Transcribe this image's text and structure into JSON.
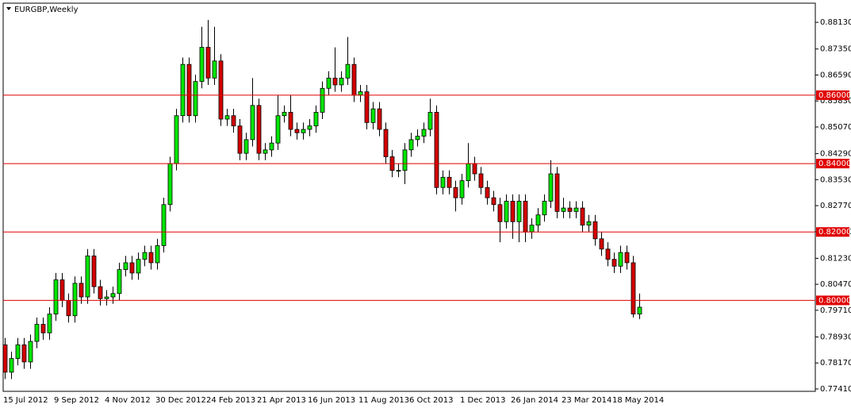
{
  "chart_data": {
    "type": "candlestick",
    "title": "EURGBP,Weekly",
    "categories": [
      "15 Jul 2012",
      null,
      null,
      null,
      null,
      null,
      null,
      null,
      "9 Sep 2012",
      null,
      null,
      null,
      null,
      null,
      null,
      null,
      "4 Nov 2012",
      null,
      null,
      null,
      null,
      null,
      null,
      null,
      "30 Dec 2012",
      null,
      null,
      null,
      null,
      null,
      null,
      null,
      "24 Feb 2013",
      null,
      null,
      null,
      null,
      null,
      null,
      null,
      "21 Apr 2013",
      null,
      null,
      null,
      null,
      null,
      null,
      null,
      "16 Jun 2013",
      null,
      null,
      null,
      null,
      null,
      null,
      null,
      "11 Aug 2013",
      null,
      null,
      null,
      null,
      null,
      null,
      null,
      "6 Oct 2013",
      null,
      null,
      null,
      null,
      null,
      null,
      null,
      "1 Dec 2013",
      null,
      null,
      null,
      null,
      null,
      null,
      null,
      "26 Jan 2014",
      null,
      null,
      null,
      null,
      null,
      null,
      null,
      "23 Mar 2014",
      null,
      null,
      null,
      null,
      null,
      null,
      null,
      "18 May 2014",
      null,
      null,
      null,
      null
    ],
    "open": [
      0.787,
      0.779,
      0.783,
      0.787,
      0.782,
      0.788,
      0.793,
      0.7905,
      0.796,
      0.806,
      0.8,
      0.7955,
      0.805,
      0.801,
      0.813,
      0.804,
      0.8005,
      0.801,
      0.802,
      0.809,
      0.811,
      0.808,
      0.812,
      0.814,
      0.811,
      0.816,
      0.828,
      0.84,
      0.854,
      0.869,
      0.854,
      0.864,
      0.874,
      0.865,
      0.87,
      0.853,
      0.854,
      0.851,
      0.843,
      0.847,
      0.857,
      0.843,
      0.844,
      0.846,
      0.854,
      0.855,
      0.85,
      0.849,
      0.85,
      0.851,
      0.855,
      0.862,
      0.865,
      0.863,
      0.865,
      0.869,
      0.86,
      0.861,
      0.852,
      0.856,
      0.85,
      0.842,
      0.838,
      0.838,
      0.844,
      0.847,
      0.848,
      0.85,
      0.855,
      0.833,
      0.836,
      0.833,
      0.83,
      0.835,
      0.84,
      0.837,
      0.833,
      0.83,
      0.828,
      0.823,
      0.829,
      0.823,
      0.829,
      0.82,
      0.822,
      0.825,
      0.829,
      0.837,
      0.826,
      0.827,
      0.826,
      0.827,
      0.822,
      0.823,
      0.818,
      0.815,
      0.812,
      0.81,
      0.814,
      0.811,
      0.796
    ],
    "high": [
      0.789,
      0.785,
      0.789,
      0.789,
      0.79,
      0.795,
      0.795,
      0.798,
      0.808,
      0.808,
      0.802,
      0.807,
      0.807,
      0.815,
      0.815,
      0.806,
      0.803,
      0.804,
      0.811,
      0.813,
      0.813,
      0.814,
      0.816,
      0.816,
      0.818,
      0.83,
      0.842,
      0.856,
      0.871,
      0.871,
      0.866,
      0.88,
      0.882,
      0.88,
      0.872,
      0.856,
      0.856,
      0.853,
      0.849,
      0.865,
      0.859,
      0.846,
      0.848,
      0.86,
      0.857,
      0.86,
      0.852,
      0.852,
      0.853,
      0.857,
      0.864,
      0.867,
      0.874,
      0.867,
      0.877,
      0.871,
      0.863,
      0.863,
      0.858,
      0.858,
      0.852,
      0.844,
      0.84,
      0.846,
      0.849,
      0.85,
      0.852,
      0.859,
      0.857,
      0.838,
      0.838,
      0.835,
      0.837,
      0.846,
      0.842,
      0.839,
      0.835,
      0.832,
      0.83,
      0.831,
      0.831,
      0.831,
      0.831,
      0.824,
      0.827,
      0.831,
      0.841,
      0.839,
      0.83,
      0.829,
      0.829,
      0.829,
      0.825,
      0.825,
      0.82,
      0.817,
      0.814,
      0.816,
      0.816,
      0.813,
      0.802
    ],
    "low": [
      0.777,
      0.777,
      0.781,
      0.78,
      0.78,
      0.786,
      0.7885,
      0.7885,
      0.794,
      0.798,
      0.7935,
      0.7935,
      0.799,
      0.799,
      0.802,
      0.7985,
      0.7985,
      0.799,
      0.8,
      0.807,
      0.806,
      0.806,
      0.81,
      0.809,
      0.809,
      0.814,
      0.826,
      0.838,
      0.852,
      0.852,
      0.852,
      0.862,
      0.863,
      0.863,
      0.851,
      0.851,
      0.849,
      0.841,
      0.841,
      0.845,
      0.841,
      0.841,
      0.842,
      0.844,
      0.852,
      0.848,
      0.847,
      0.847,
      0.848,
      0.849,
      0.853,
      0.86,
      0.861,
      0.861,
      0.863,
      0.858,
      0.858,
      0.85,
      0.85,
      0.848,
      0.84,
      0.836,
      0.836,
      0.834,
      0.842,
      0.845,
      0.846,
      0.848,
      0.831,
      0.831,
      0.831,
      0.826,
      0.828,
      0.833,
      0.835,
      0.831,
      0.828,
      0.826,
      0.817,
      0.821,
      0.818,
      0.817,
      0.817,
      0.818,
      0.82,
      0.823,
      0.827,
      0.824,
      0.824,
      0.824,
      0.824,
      0.82,
      0.82,
      0.816,
      0.813,
      0.81,
      0.808,
      0.808,
      0.809,
      0.795,
      0.7945
    ],
    "close": [
      0.779,
      0.783,
      0.787,
      0.782,
      0.788,
      0.793,
      0.7905,
      0.796,
      0.806,
      0.8,
      0.7955,
      0.805,
      0.801,
      0.813,
      0.804,
      0.8005,
      0.801,
      0.802,
      0.809,
      0.811,
      0.808,
      0.812,
      0.814,
      0.811,
      0.816,
      0.828,
      0.84,
      0.854,
      0.869,
      0.854,
      0.864,
      0.874,
      0.865,
      0.87,
      0.853,
      0.854,
      0.851,
      0.843,
      0.847,
      0.857,
      0.843,
      0.844,
      0.846,
      0.854,
      0.855,
      0.85,
      0.849,
      0.85,
      0.851,
      0.855,
      0.862,
      0.865,
      0.863,
      0.865,
      0.869,
      0.86,
      0.861,
      0.852,
      0.856,
      0.85,
      0.842,
      0.838,
      0.838,
      0.844,
      0.847,
      0.848,
      0.85,
      0.855,
      0.833,
      0.836,
      0.833,
      0.83,
      0.835,
      0.84,
      0.837,
      0.833,
      0.83,
      0.828,
      0.823,
      0.829,
      0.823,
      0.829,
      0.82,
      0.822,
      0.825,
      0.829,
      0.837,
      0.826,
      0.827,
      0.826,
      0.827,
      0.822,
      0.823,
      0.818,
      0.815,
      0.812,
      0.81,
      0.814,
      0.811,
      0.796,
      0.798
    ],
    "up_color": "#00e600",
    "down_color": "#d40000",
    "ylim": [
      0.7734,
      0.8869
    ],
    "yticks": [
      {
        "value": 0.8813,
        "label": "0.88130"
      },
      {
        "value": 0.8735,
        "label": "0.87350"
      },
      {
        "value": 0.8659,
        "label": "0.86590"
      },
      {
        "value": 0.8583,
        "label": "0.85830"
      },
      {
        "value": 0.8507,
        "label": "0.85070"
      },
      {
        "value": 0.8429,
        "label": "0.84290"
      },
      {
        "value": 0.8353,
        "label": "0.83530"
      },
      {
        "value": 0.8277,
        "label": "0.82770"
      },
      {
        "value": 0.8201,
        "label": "0.82010"
      },
      {
        "value": 0.8123,
        "label": "0.81230"
      },
      {
        "value": 0.8047,
        "label": "0.80470"
      },
      {
        "value": 0.7971,
        "label": "0.79710"
      },
      {
        "value": 0.7893,
        "label": "0.78930"
      },
      {
        "value": 0.7817,
        "label": "0.78170"
      },
      {
        "value": 0.7741,
        "label": "0.77410"
      }
    ],
    "hlines": [
      {
        "value": 0.86,
        "label": "0.86000"
      },
      {
        "value": 0.84,
        "label": "0.84000"
      },
      {
        "value": 0.82,
        "label": "0.82000"
      },
      {
        "value": 0.8,
        "label": "0.80000"
      }
    ],
    "hline_color": "#e00000"
  }
}
